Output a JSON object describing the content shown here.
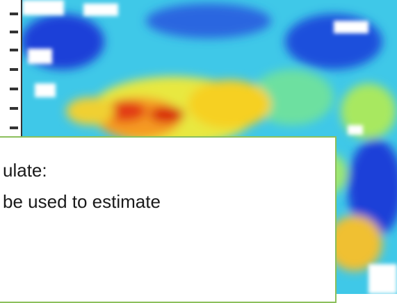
{
  "text_box": {
    "lines": [
      "ulate:",
      "be used to estimate"
    ]
  }
}
